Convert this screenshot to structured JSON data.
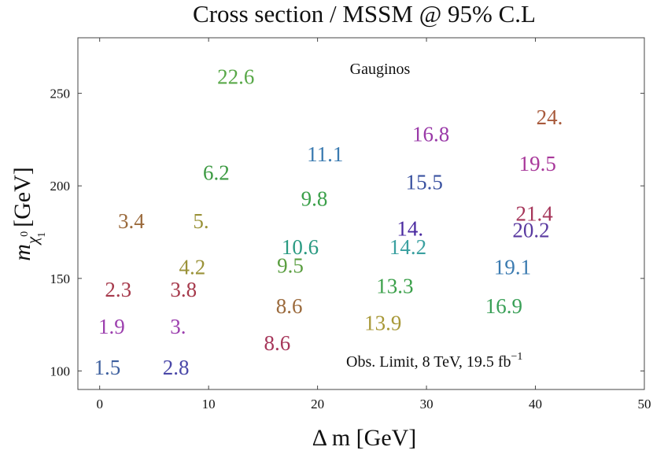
{
  "chart_data": {
    "type": "scatter",
    "title": "Cross section / MSSM @ 95% C.L",
    "xlabel": "Δ m [GeV]",
    "ylabel_main": "m",
    "ylabel_sub": "χ",
    "ylabel_sub_sup": "0",
    "ylabel_sub_sub": "1",
    "ylabel_unit": "[GeV]",
    "xlim": [
      -2,
      50
    ],
    "ylim": [
      90,
      280
    ],
    "xticks": [
      0,
      10,
      20,
      30,
      40,
      50
    ],
    "yticks": [
      100,
      150,
      200,
      250
    ],
    "grid": false,
    "annotations": {
      "region": "Gauginos",
      "limit_text": "Obs. Limit, 8 TeV, 19.5 fb",
      "limit_sup": "−1"
    },
    "points": [
      {
        "x": 0.7,
        "y": 102,
        "label": "1.5",
        "color": "#3d5f9e"
      },
      {
        "x": 7.0,
        "y": 102,
        "label": "2.8",
        "color": "#4a48a8"
      },
      {
        "x": 1.1,
        "y": 124,
        "label": "1.9",
        "color": "#9c3fae"
      },
      {
        "x": 7.2,
        "y": 124,
        "label": "3.",
        "color": "#9c3fae"
      },
      {
        "x": 1.7,
        "y": 144,
        "label": "2.3",
        "color": "#a63a4c"
      },
      {
        "x": 7.7,
        "y": 144,
        "label": "3.8",
        "color": "#a63a4c"
      },
      {
        "x": 8.5,
        "y": 156,
        "label": "4.2",
        "color": "#9a9238"
      },
      {
        "x": 2.9,
        "y": 181,
        "label": "3.4",
        "color": "#9b6a3c"
      },
      {
        "x": 9.3,
        "y": 181,
        "label": "5.",
        "color": "#9a9238"
      },
      {
        "x": 10.7,
        "y": 207,
        "label": "6.2",
        "color": "#3c9a42"
      },
      {
        "x": 12.5,
        "y": 259,
        "label": "22.6",
        "color": "#58a848"
      },
      {
        "x": 16.3,
        "y": 115,
        "label": "8.6",
        "color": "#a6365a"
      },
      {
        "x": 17.4,
        "y": 135,
        "label": "8.6",
        "color": "#9b6a3c"
      },
      {
        "x": 17.5,
        "y": 157,
        "label": "9.5",
        "color": "#5a9e40"
      },
      {
        "x": 18.4,
        "y": 167,
        "label": "10.6",
        "color": "#2a9a82"
      },
      {
        "x": 19.7,
        "y": 193,
        "label": "9.8",
        "color": "#3ba04a"
      },
      {
        "x": 20.7,
        "y": 217,
        "label": "11.1",
        "color": "#3a7ab0"
      },
      {
        "x": 26.0,
        "y": 126,
        "label": "13.9",
        "color": "#a89838"
      },
      {
        "x": 27.1,
        "y": 146,
        "label": "13.3",
        "color": "#3ba04a"
      },
      {
        "x": 28.3,
        "y": 167,
        "label": "14.2",
        "color": "#3aa0a0"
      },
      {
        "x": 28.5,
        "y": 177,
        "label": "14.",
        "color": "#4a2aa0"
      },
      {
        "x": 29.8,
        "y": 202,
        "label": "15.5",
        "color": "#3a52a0"
      },
      {
        "x": 30.4,
        "y": 228,
        "label": "16.8",
        "color": "#9a3aa8"
      },
      {
        "x": 37.1,
        "y": 135,
        "label": "16.9",
        "color": "#3aa058"
      },
      {
        "x": 37.9,
        "y": 156,
        "label": "19.1",
        "color": "#3a7ab0"
      },
      {
        "x": 39.6,
        "y": 176,
        "label": "20.2",
        "color": "#5a3aa0"
      },
      {
        "x": 39.9,
        "y": 185,
        "label": "21.4",
        "color": "#a6365a"
      },
      {
        "x": 40.2,
        "y": 212,
        "label": "19.5",
        "color": "#a8389a"
      },
      {
        "x": 41.3,
        "y": 237,
        "label": "24.",
        "color": "#a85a3c"
      }
    ]
  }
}
